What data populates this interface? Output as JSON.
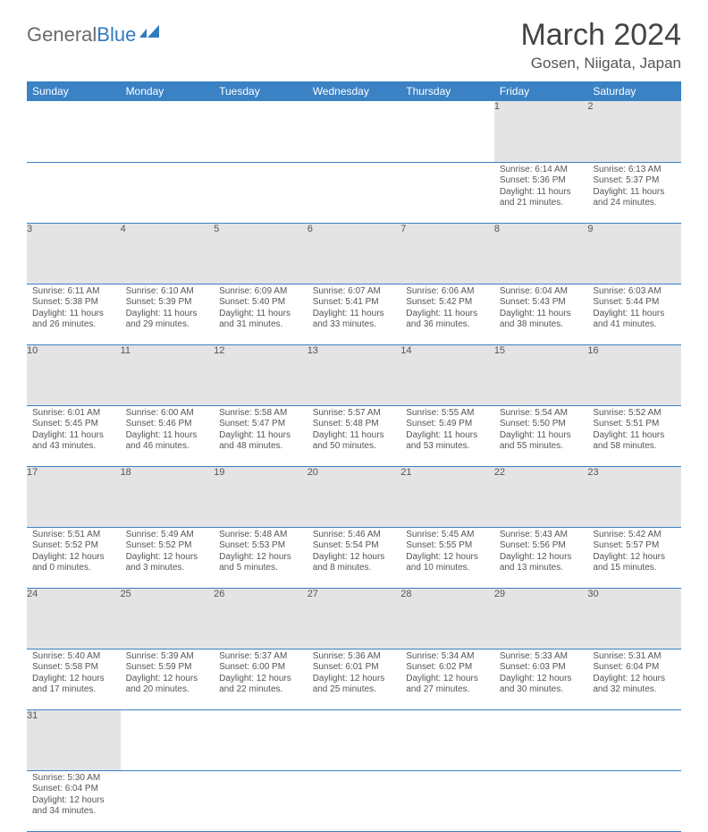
{
  "logo": {
    "word1": "General",
    "word2": "Blue"
  },
  "title": "March 2024",
  "location": "Gosen, Niigata, Japan",
  "colors": {
    "header_bg": "#3a82c4",
    "header_text": "#ffffff",
    "daynum_bg": "#e4e4e4",
    "text": "#555555",
    "rule": "#3a82c4",
    "logo_gray": "#6b6b6b",
    "logo_blue": "#2f7bbf"
  },
  "fonts": {
    "title_pt": 34,
    "location_pt": 17,
    "header_pt": 12,
    "daynum_pt": 11,
    "body_pt": 10
  },
  "weekdays": [
    "Sunday",
    "Monday",
    "Tuesday",
    "Wednesday",
    "Thursday",
    "Friday",
    "Saturday"
  ],
  "first_weekday_index": 5,
  "days": [
    {
      "n": 1,
      "sunrise": "6:14 AM",
      "sunset": "5:36 PM",
      "daylight": "11 hours and 21 minutes."
    },
    {
      "n": 2,
      "sunrise": "6:13 AM",
      "sunset": "5:37 PM",
      "daylight": "11 hours and 24 minutes."
    },
    {
      "n": 3,
      "sunrise": "6:11 AM",
      "sunset": "5:38 PM",
      "daylight": "11 hours and 26 minutes."
    },
    {
      "n": 4,
      "sunrise": "6:10 AM",
      "sunset": "5:39 PM",
      "daylight": "11 hours and 29 minutes."
    },
    {
      "n": 5,
      "sunrise": "6:09 AM",
      "sunset": "5:40 PM",
      "daylight": "11 hours and 31 minutes."
    },
    {
      "n": 6,
      "sunrise": "6:07 AM",
      "sunset": "5:41 PM",
      "daylight": "11 hours and 33 minutes."
    },
    {
      "n": 7,
      "sunrise": "6:06 AM",
      "sunset": "5:42 PM",
      "daylight": "11 hours and 36 minutes."
    },
    {
      "n": 8,
      "sunrise": "6:04 AM",
      "sunset": "5:43 PM",
      "daylight": "11 hours and 38 minutes."
    },
    {
      "n": 9,
      "sunrise": "6:03 AM",
      "sunset": "5:44 PM",
      "daylight": "11 hours and 41 minutes."
    },
    {
      "n": 10,
      "sunrise": "6:01 AM",
      "sunset": "5:45 PM",
      "daylight": "11 hours and 43 minutes."
    },
    {
      "n": 11,
      "sunrise": "6:00 AM",
      "sunset": "5:46 PM",
      "daylight": "11 hours and 46 minutes."
    },
    {
      "n": 12,
      "sunrise": "5:58 AM",
      "sunset": "5:47 PM",
      "daylight": "11 hours and 48 minutes."
    },
    {
      "n": 13,
      "sunrise": "5:57 AM",
      "sunset": "5:48 PM",
      "daylight": "11 hours and 50 minutes."
    },
    {
      "n": 14,
      "sunrise": "5:55 AM",
      "sunset": "5:49 PM",
      "daylight": "11 hours and 53 minutes."
    },
    {
      "n": 15,
      "sunrise": "5:54 AM",
      "sunset": "5:50 PM",
      "daylight": "11 hours and 55 minutes."
    },
    {
      "n": 16,
      "sunrise": "5:52 AM",
      "sunset": "5:51 PM",
      "daylight": "11 hours and 58 minutes."
    },
    {
      "n": 17,
      "sunrise": "5:51 AM",
      "sunset": "5:52 PM",
      "daylight": "12 hours and 0 minutes."
    },
    {
      "n": 18,
      "sunrise": "5:49 AM",
      "sunset": "5:52 PM",
      "daylight": "12 hours and 3 minutes."
    },
    {
      "n": 19,
      "sunrise": "5:48 AM",
      "sunset": "5:53 PM",
      "daylight": "12 hours and 5 minutes."
    },
    {
      "n": 20,
      "sunrise": "5:46 AM",
      "sunset": "5:54 PM",
      "daylight": "12 hours and 8 minutes."
    },
    {
      "n": 21,
      "sunrise": "5:45 AM",
      "sunset": "5:55 PM",
      "daylight": "12 hours and 10 minutes."
    },
    {
      "n": 22,
      "sunrise": "5:43 AM",
      "sunset": "5:56 PM",
      "daylight": "12 hours and 13 minutes."
    },
    {
      "n": 23,
      "sunrise": "5:42 AM",
      "sunset": "5:57 PM",
      "daylight": "12 hours and 15 minutes."
    },
    {
      "n": 24,
      "sunrise": "5:40 AM",
      "sunset": "5:58 PM",
      "daylight": "12 hours and 17 minutes."
    },
    {
      "n": 25,
      "sunrise": "5:39 AM",
      "sunset": "5:59 PM",
      "daylight": "12 hours and 20 minutes."
    },
    {
      "n": 26,
      "sunrise": "5:37 AM",
      "sunset": "6:00 PM",
      "daylight": "12 hours and 22 minutes."
    },
    {
      "n": 27,
      "sunrise": "5:36 AM",
      "sunset": "6:01 PM",
      "daylight": "12 hours and 25 minutes."
    },
    {
      "n": 28,
      "sunrise": "5:34 AM",
      "sunset": "6:02 PM",
      "daylight": "12 hours and 27 minutes."
    },
    {
      "n": 29,
      "sunrise": "5:33 AM",
      "sunset": "6:03 PM",
      "daylight": "12 hours and 30 minutes."
    },
    {
      "n": 30,
      "sunrise": "5:31 AM",
      "sunset": "6:04 PM",
      "daylight": "12 hours and 32 minutes."
    },
    {
      "n": 31,
      "sunrise": "5:30 AM",
      "sunset": "6:04 PM",
      "daylight": "12 hours and 34 minutes."
    }
  ],
  "labels": {
    "sunrise": "Sunrise:",
    "sunset": "Sunset:",
    "daylight": "Daylight:"
  }
}
